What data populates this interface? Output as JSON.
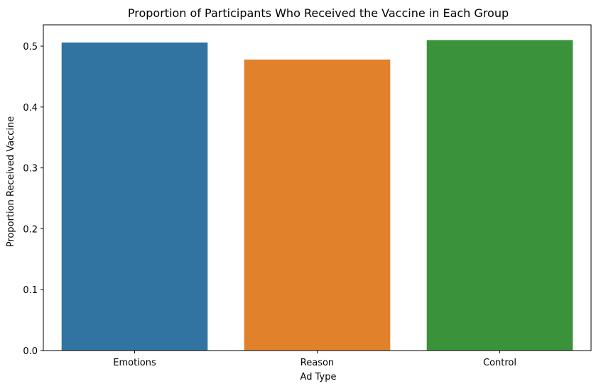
{
  "chart_data": {
    "type": "bar",
    "title": "Proportion of Participants Who Received the Vaccine in Each Group",
    "xlabel": "Ad Type",
    "ylabel": "Proportion Received Vaccine",
    "categories": [
      "Emotions",
      "Reason",
      "Control"
    ],
    "values": [
      0.506,
      0.478,
      0.51
    ],
    "colors": [
      "#3274a1",
      "#e1812c",
      "#3a923a"
    ],
    "ylim": [
      0,
      0.535
    ],
    "yticks": [
      0.0,
      0.1,
      0.2,
      0.3,
      0.4,
      0.5
    ],
    "ytick_labels": [
      "0.0",
      "0.1",
      "0.2",
      "0.3",
      "0.4",
      "0.5"
    ],
    "grid": false,
    "legend": "none"
  }
}
